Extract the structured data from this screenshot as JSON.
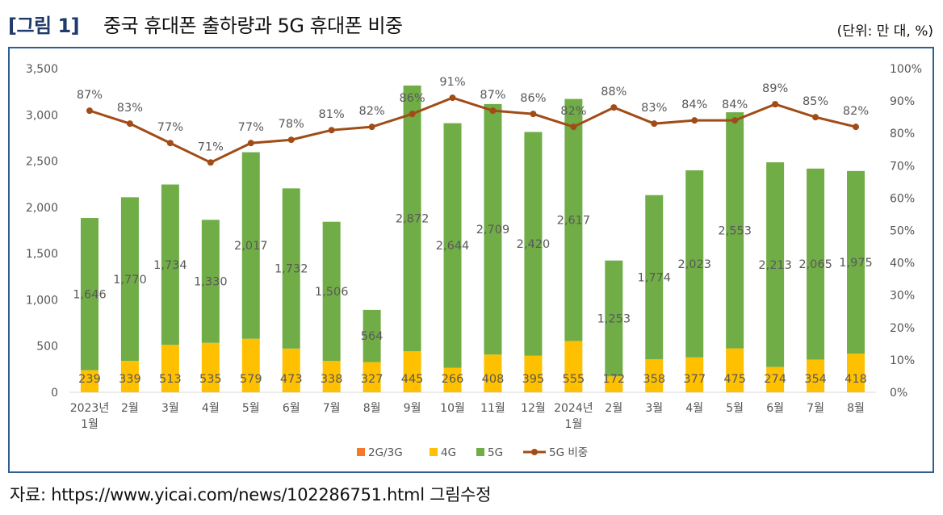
{
  "figure": {
    "number": "[그림 1]",
    "title": "중국 휴대폰 출하량과 5G 휴대폰 비중",
    "unit": "(단위: 만 대, %)",
    "source": "자료: https://www.yicai.com/news/102286751.html 그림수정"
  },
  "chart_data": {
    "type": "bar",
    "stacked": true,
    "categories": [
      "2023년\n1월",
      "2월",
      "3월",
      "4월",
      "5월",
      "6월",
      "7월",
      "8월",
      "9월",
      "10월",
      "11월",
      "12월",
      "2024년\n1월",
      "2월",
      "3월",
      "4월",
      "5월",
      "6월",
      "7월",
      "8월"
    ],
    "series": [
      {
        "name": "2G/3G",
        "color": "#f4792a",
        "axis": "left",
        "values": [
          0,
          0,
          0,
          0,
          0,
          0,
          0,
          0,
          0,
          0,
          0,
          0,
          0,
          0,
          0,
          0,
          0,
          0,
          0,
          0
        ]
      },
      {
        "name": "4G",
        "color": "#ffc000",
        "axis": "left",
        "values": [
          239,
          339,
          513,
          535,
          579,
          473,
          338,
          327,
          445,
          266,
          408,
          395,
          555,
          172,
          358,
          377,
          475,
          274,
          354,
          418
        ]
      },
      {
        "name": "5G",
        "color": "#70ad47",
        "axis": "left",
        "values": [
          1646,
          1770,
          1734,
          1330,
          2017,
          1732,
          1506,
          564,
          2872,
          2644,
          2709,
          2420,
          2617,
          1253,
          1774,
          2023,
          2553,
          2213,
          2065,
          1975
        ]
      },
      {
        "name": "5G 비중",
        "color": "#a14c16",
        "type": "line",
        "axis": "right",
        "values": [
          87,
          83,
          77,
          71,
          77,
          78,
          81,
          82,
          86,
          91,
          87,
          86,
          82,
          88,
          83,
          84,
          84,
          89,
          85,
          82
        ]
      }
    ],
    "data_labels_4g": [
      "239",
      "339",
      "513",
      "535",
      "579",
      "473",
      "338",
      "327",
      "445",
      "266",
      "408",
      "395",
      "555",
      "172",
      "358",
      "377",
      "475",
      "274",
      "354",
      "418"
    ],
    "data_labels_5g": [
      "1,646",
      "1,770",
      "1,734",
      "1,330",
      "2,017",
      "1,732",
      "1,506",
      "564",
      "2,872",
      "2,644",
      "2,709",
      "2,420",
      "2,617",
      "1,253",
      "1,774",
      "2,023",
      "2,553",
      "2,213",
      "2,065",
      "1,975"
    ],
    "data_labels_share": [
      "87%",
      "83%",
      "77%",
      "71%",
      "77%",
      "78%",
      "81%",
      "82%",
      "86%",
      "91%",
      "87%",
      "86%",
      "82%",
      "88%",
      "83%",
      "84%",
      "84%",
      "89%",
      "85%",
      "82%"
    ],
    "ylim": [
      0,
      3500
    ],
    "y2lim": [
      0,
      100
    ],
    "yticks": [
      "0",
      "500",
      "1,000",
      "1,500",
      "2,000",
      "2,500",
      "3,000",
      "3,500"
    ],
    "y2ticks": [
      "0%",
      "10%",
      "20%",
      "30%",
      "40%",
      "50%",
      "60%",
      "70%",
      "80%",
      "90%",
      "100%"
    ],
    "legend": [
      "2G/3G",
      "4G",
      "5G",
      "5G 비중"
    ],
    "legend_position": "bottom",
    "grid": false
  }
}
